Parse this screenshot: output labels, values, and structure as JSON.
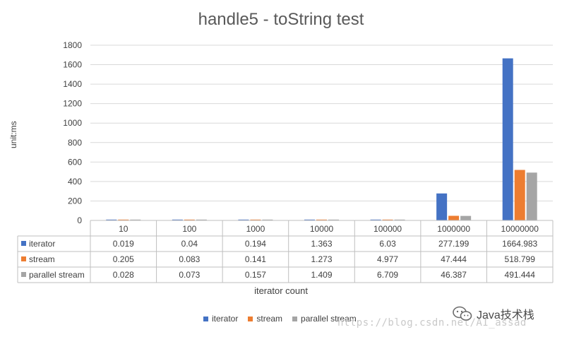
{
  "chart_data": {
    "type": "bar",
    "title": "handle5 - toString test",
    "xlabel": "iterator count",
    "ylabel": "unit:ms",
    "ylim": [
      0,
      1800
    ],
    "yticks": [
      0,
      200,
      400,
      600,
      800,
      1000,
      1200,
      1400,
      1600,
      1800
    ],
    "grid": true,
    "legend_position": "bottom",
    "categories": [
      "10",
      "100",
      "1000",
      "10000",
      "100000",
      "1000000",
      "10000000"
    ],
    "series": [
      {
        "name": "iterator",
        "color": "#4472C4",
        "values": [
          0.019,
          0.04,
          0.194,
          1.363,
          6.03,
          277.199,
          1664.983
        ],
        "labels": [
          "0.019",
          "0.04",
          "0.194",
          "1.363",
          "6.03",
          "277.199",
          "1664.983"
        ]
      },
      {
        "name": "stream",
        "color": "#ED7D31",
        "values": [
          0.205,
          0.083,
          0.141,
          1.273,
          4.977,
          47.444,
          518.799
        ],
        "labels": [
          "0.205",
          "0.083",
          "0.141",
          "1.273",
          "4.977",
          "47.444",
          "518.799"
        ]
      },
      {
        "name": "parallel stream",
        "color": "#A5A5A5",
        "values": [
          0.028,
          0.073,
          0.157,
          1.409,
          6.709,
          46.387,
          491.444
        ],
        "labels": [
          "0.028",
          "0.073",
          "0.157",
          "1.409",
          "6.709",
          "46.387",
          "491.444"
        ]
      }
    ]
  },
  "watermark": "https://blog.csdn.net/AI_assad",
  "badge": {
    "icon": "wechat-icon",
    "text": "Java技术栈"
  }
}
